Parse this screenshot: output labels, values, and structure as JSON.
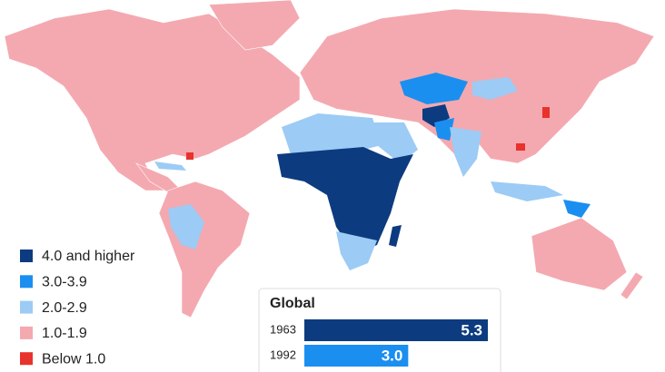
{
  "legend": [
    {
      "label": "4.0 and higher",
      "color": "#0c3b80"
    },
    {
      "label": "3.0-3.9",
      "color": "#1b8ff0"
    },
    {
      "label": "2.0-2.9",
      "color": "#9ccbf5"
    },
    {
      "label": "1.0-1.9",
      "color": "#f4a9b0"
    },
    {
      "label": "Below 1.0",
      "color": "#e8322c"
    }
  ],
  "chart_data": {
    "type": "bar",
    "title": "Global",
    "categories": [
      "1963",
      "1992"
    ],
    "values": [
      5.3,
      3.0
    ],
    "value_labels": [
      "5.3",
      "3.0"
    ],
    "colors": [
      "#0c3b80",
      "#1b8ff0"
    ]
  }
}
